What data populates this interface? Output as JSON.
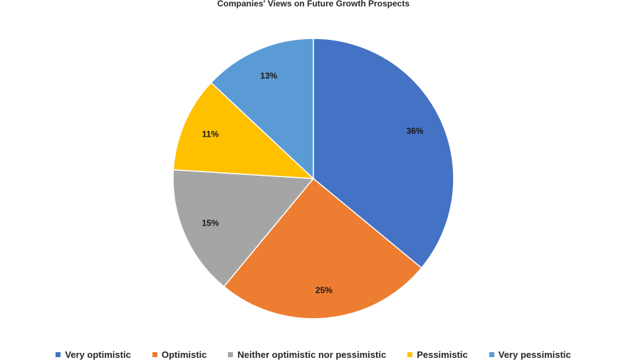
{
  "chart_data": {
    "type": "pie",
    "title": "Companies' Views on Future Growth Prospects",
    "categories": [
      "Very optimistic",
      "Optimistic",
      "Neither optimistic nor pessimistic",
      "Pessimistic",
      "Very pessimistic"
    ],
    "values": [
      36,
      25,
      15,
      11,
      13
    ],
    "labels": [
      "36%",
      "25%",
      "15%",
      "11%",
      "13%"
    ],
    "colors": [
      "#4472C4",
      "#ED7D31",
      "#A5A5A5",
      "#FFC000",
      "#5B9BD5"
    ],
    "legend_position": "bottom",
    "start_angle": "12 o'clock",
    "direction": "clockwise"
  }
}
